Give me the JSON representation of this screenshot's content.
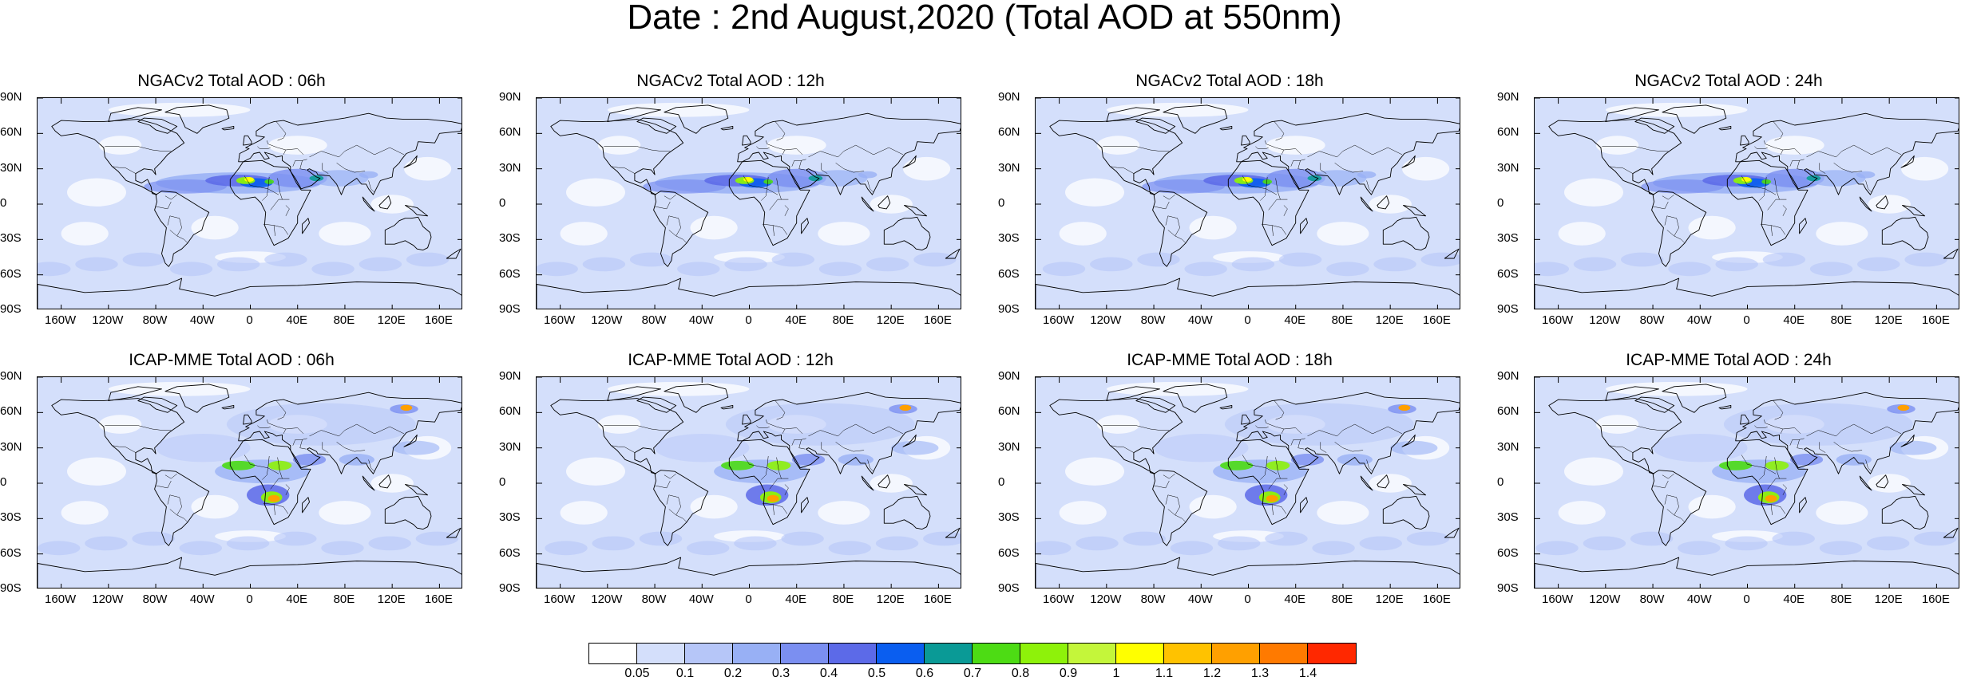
{
  "title": "Date : 2nd August,2020 (Total AOD at 550nm)",
  "panels": [
    {
      "title": "NGACv2 Total AOD : 06h",
      "model": "ngac"
    },
    {
      "title": "NGACv2 Total AOD : 12h",
      "model": "ngac"
    },
    {
      "title": "NGACv2 Total AOD : 18h",
      "model": "ngac"
    },
    {
      "title": "NGACv2 Total AOD : 24h",
      "model": "ngac"
    },
    {
      "title": "ICAP-MME Total AOD : 06h",
      "model": "icap"
    },
    {
      "title": "ICAP-MME Total AOD : 12h",
      "model": "icap"
    },
    {
      "title": "ICAP-MME Total AOD : 18h",
      "model": "icap"
    },
    {
      "title": "ICAP-MME Total AOD : 24h",
      "model": "icap"
    }
  ],
  "lat_labels": [
    "90N",
    "60N",
    "30N",
    "0",
    "30S",
    "60S",
    "90S"
  ],
  "lon_labels": [
    "160W",
    "120W",
    "80W",
    "40W",
    "0",
    "40E",
    "80E",
    "120E",
    "160E"
  ],
  "colorbar": {
    "colors": [
      "#ffffff",
      "#d4dffb",
      "#b6c6f8",
      "#98b0f5",
      "#7b8ff1",
      "#5c6ae8",
      "#0a5ef0",
      "#0a9a96",
      "#4ddc14",
      "#8ef20a",
      "#c4f63a",
      "#ffff00",
      "#ffc200",
      "#ffa000",
      "#ff7a00",
      "#ff2800"
    ],
    "labels": [
      "0.05",
      "0.1",
      "0.2",
      "0.3",
      "0.4",
      "0.5",
      "0.6",
      "0.7",
      "0.8",
      "0.9",
      "1",
      "1.1",
      "1.2",
      "1.3",
      "1.4"
    ]
  }
}
